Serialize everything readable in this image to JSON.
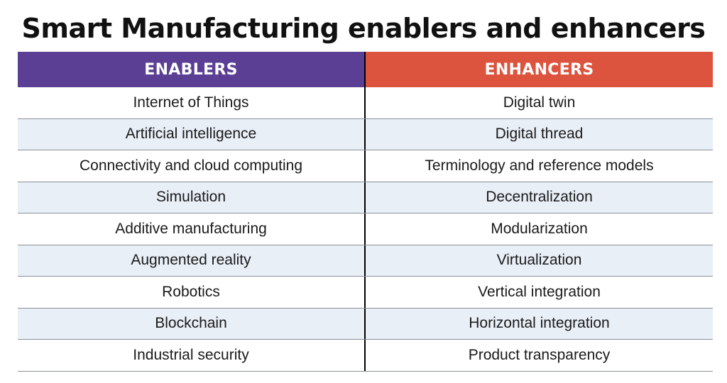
{
  "title": "Smart Manufacturing enablers and enhancers",
  "colors": {
    "enablers_header": "#5b3f95",
    "enhancers_header": "#dc533e",
    "alt_row": "#e9eff7",
    "divider": "#000000"
  },
  "headers": {
    "enablers": "ENABLERS",
    "enhancers": "ENHANCERS"
  },
  "rows": [
    {
      "enabler": "Internet of Things",
      "enhancer": "Digital twin"
    },
    {
      "enabler": "Artificial intelligence",
      "enhancer": "Digital thread"
    },
    {
      "enabler": "Connectivity and cloud computing",
      "enhancer": "Terminology and reference models"
    },
    {
      "enabler": "Simulation",
      "enhancer": "Decentralization"
    },
    {
      "enabler": "Additive manufacturing",
      "enhancer": "Modularization"
    },
    {
      "enabler": "Augmented reality",
      "enhancer": "Virtualization"
    },
    {
      "enabler": "Robotics",
      "enhancer": "Vertical integration"
    },
    {
      "enabler": "Blockchain",
      "enhancer": "Horizontal integration"
    },
    {
      "enabler": "Industrial security",
      "enhancer": "Product transparency"
    }
  ]
}
